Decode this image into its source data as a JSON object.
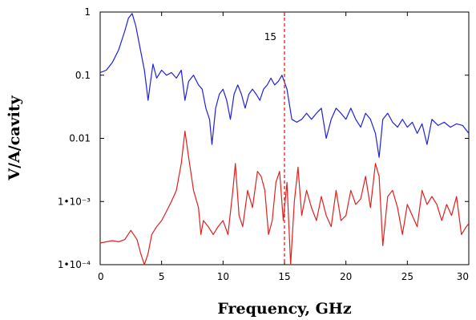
{
  "chart_data": {
    "type": "line",
    "xlabel": "Frequency, GHz",
    "ylabel": "V/A/cavity",
    "xlim": [
      0,
      30
    ],
    "ylim": [
      0.0001,
      1
    ],
    "yscale": "log",
    "x_ticks": [
      0,
      5,
      10,
      15,
      20,
      25,
      30
    ],
    "x_tick_labels": [
      "0",
      "5",
      "10",
      "15",
      "20",
      "25",
      "30"
    ],
    "y_ticks": [
      1,
      0.1,
      0.01,
      0.001,
      0.0001
    ],
    "y_tick_labels": [
      "1",
      "0.1",
      "0.01",
      "1•10⁻³",
      "1•10⁻⁴"
    ],
    "grid": false,
    "legend": "none",
    "marker": {
      "x": 15,
      "label": "15",
      "color": "#e02020"
    },
    "series": [
      {
        "color": "#2020e0",
        "x": [
          0,
          0.5,
          1,
          1.5,
          2,
          2.3,
          2.6,
          2.9,
          3.2,
          3.6,
          3.9,
          4.1,
          4.3,
          4.6,
          5.0,
          5.4,
          5.8,
          6.2,
          6.6,
          6.9,
          7.2,
          7.6,
          8.0,
          8.3,
          8.6,
          8.9,
          9.1,
          9.4,
          9.7,
          10.0,
          10.3,
          10.6,
          10.9,
          11.2,
          11.5,
          11.8,
          12.1,
          12.4,
          12.7,
          13.0,
          13.3,
          13.6,
          13.9,
          14.2,
          14.5,
          14.8,
          15.2,
          15.6,
          16.0,
          16.4,
          16.8,
          17.2,
          17.6,
          18.0,
          18.4,
          18.8,
          19.2,
          19.6,
          20.0,
          20.4,
          20.8,
          21.2,
          21.6,
          22.0,
          22.4,
          22.7,
          23.0,
          23.4,
          23.8,
          24.2,
          24.6,
          25.0,
          25.4,
          25.8,
          26.2,
          26.6,
          27.0,
          27.5,
          28.0,
          28.5,
          29.0,
          29.5,
          30.0
        ],
        "y": [
          0.11,
          0.12,
          0.16,
          0.25,
          0.5,
          0.8,
          0.95,
          0.6,
          0.3,
          0.12,
          0.04,
          0.08,
          0.15,
          0.09,
          0.12,
          0.1,
          0.11,
          0.09,
          0.12,
          0.04,
          0.08,
          0.1,
          0.07,
          0.06,
          0.03,
          0.02,
          0.008,
          0.03,
          0.05,
          0.06,
          0.04,
          0.02,
          0.05,
          0.07,
          0.05,
          0.03,
          0.05,
          0.06,
          0.05,
          0.04,
          0.06,
          0.07,
          0.09,
          0.07,
          0.08,
          0.1,
          0.06,
          0.02,
          0.018,
          0.02,
          0.025,
          0.02,
          0.025,
          0.03,
          0.01,
          0.02,
          0.03,
          0.025,
          0.02,
          0.03,
          0.02,
          0.015,
          0.025,
          0.02,
          0.012,
          0.005,
          0.02,
          0.025,
          0.018,
          0.015,
          0.02,
          0.015,
          0.018,
          0.012,
          0.017,
          0.008,
          0.02,
          0.016,
          0.018,
          0.015,
          0.017,
          0.016,
          0.012
        ]
      },
      {
        "color": "#e02020",
        "x": [
          0,
          0.5,
          1,
          1.5,
          2,
          2.5,
          3.0,
          3.3,
          3.6,
          3.9,
          4.2,
          4.6,
          5.0,
          5.4,
          5.8,
          6.2,
          6.6,
          6.9,
          7.2,
          7.6,
          8.0,
          8.2,
          8.4,
          8.8,
          9.2,
          9.6,
          10.0,
          10.4,
          10.8,
          11.0,
          11.3,
          11.6,
          12.0,
          12.4,
          12.8,
          13.1,
          13.4,
          13.7,
          14.0,
          14.3,
          14.6,
          14.9,
          15.2,
          15.5,
          15.8,
          16.1,
          16.4,
          16.8,
          17.2,
          17.6,
          18.0,
          18.4,
          18.8,
          19.2,
          19.6,
          20.0,
          20.4,
          20.8,
          21.2,
          21.6,
          22.0,
          22.4,
          22.7,
          23.0,
          23.4,
          23.8,
          24.2,
          24.6,
          25.0,
          25.4,
          25.8,
          26.2,
          26.6,
          27.0,
          27.4,
          27.8,
          28.2,
          28.6,
          29.0,
          29.4,
          29.8,
          30.0
        ],
        "y": [
          0.00022,
          0.00023,
          0.00024,
          0.00023,
          0.00025,
          0.00035,
          0.00025,
          0.00015,
          0.0001,
          0.00015,
          0.0003,
          0.0004,
          0.0005,
          0.0007,
          0.001,
          0.0015,
          0.004,
          0.013,
          0.005,
          0.0015,
          0.0008,
          0.0003,
          0.0005,
          0.0004,
          0.0003,
          0.0004,
          0.0005,
          0.0003,
          0.0015,
          0.004,
          0.0006,
          0.0004,
          0.0015,
          0.0008,
          0.003,
          0.0025,
          0.0015,
          0.0003,
          0.0005,
          0.002,
          0.003,
          0.0005,
          0.002,
          0.0001,
          0.001,
          0.0035,
          0.0006,
          0.0015,
          0.0008,
          0.0005,
          0.0012,
          0.0006,
          0.0004,
          0.0015,
          0.0005,
          0.0006,
          0.0015,
          0.0009,
          0.0011,
          0.0025,
          0.0008,
          0.004,
          0.0025,
          0.0002,
          0.0012,
          0.0015,
          0.0008,
          0.0003,
          0.0009,
          0.0006,
          0.0004,
          0.0015,
          0.0009,
          0.0012,
          0.0009,
          0.0005,
          0.0009,
          0.0006,
          0.0012,
          0.0003,
          0.0004,
          0.00045
        ]
      }
    ]
  }
}
